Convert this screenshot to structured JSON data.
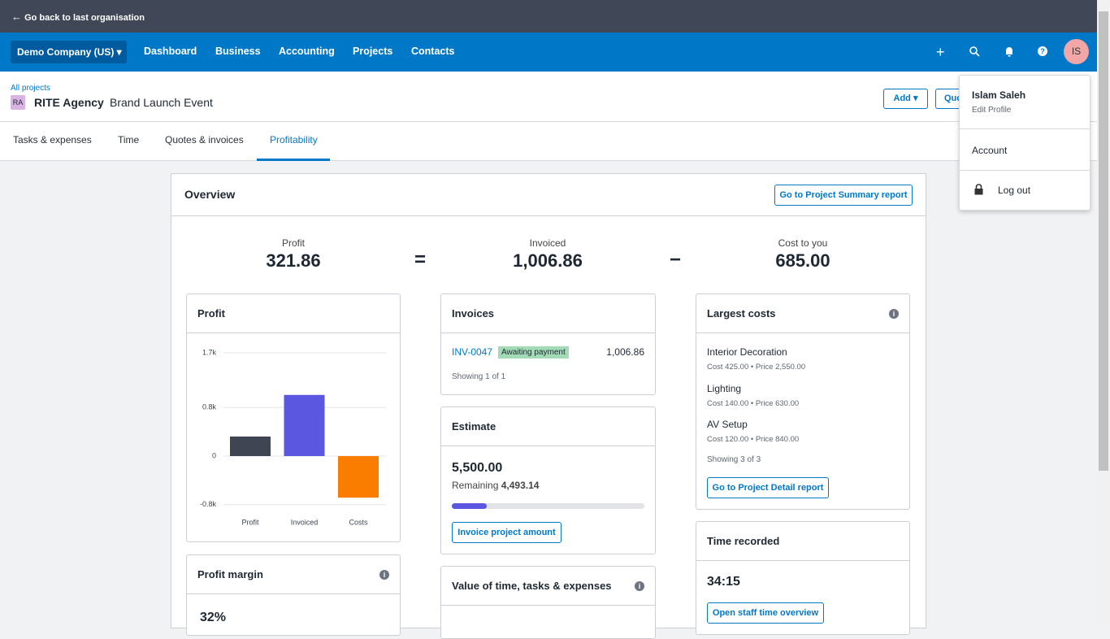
{
  "topbar": {
    "back": "Go back to last organisation"
  },
  "nav": {
    "organisation": "Demo Company (US)",
    "items": [
      "Dashboard",
      "Business",
      "Accounting",
      "Projects",
      "Contacts"
    ],
    "avatar": "IS"
  },
  "project": {
    "breadcrumb": "All projects",
    "badge": "RA",
    "client": "RITE Agency",
    "name": "Brand Launch Event",
    "buttons": [
      "Add",
      "Quo"
    ]
  },
  "tabs": {
    "items": [
      "Tasks & expenses",
      "Time",
      "Quotes & invoices",
      "Profitability"
    ],
    "active": 3
  },
  "overview": {
    "title": "Overview",
    "report_button": "Go to Project Summary report",
    "summary": [
      {
        "label": "Profit",
        "value": "321.86"
      },
      {
        "label": "Invoiced",
        "value": "1,006.86"
      },
      {
        "label": "Cost to you",
        "value": "685.00"
      }
    ],
    "operators": [
      "=",
      "−"
    ]
  },
  "profit_card": {
    "title": "Profit",
    "chart": {
      "type": "bar",
      "categories": [
        "Profit",
        "Invoiced",
        "Costs"
      ],
      "values": [
        321.86,
        1006.86,
        -685
      ],
      "colors": [
        "#3f4552",
        "#5b57e0",
        "#fa7d00"
      ],
      "ylim": [
        -850,
        1750
      ],
      "yticks": [
        {
          "value": -800,
          "label": "-0.8k"
        },
        0,
        {
          "value": 800,
          "label": "0.8k"
        },
        {
          "value": 1700,
          "label": "1.7k"
        }
      ],
      "grid": true
    }
  },
  "margin_card": {
    "title": "Profit margin",
    "value": "32%"
  },
  "invoices_card": {
    "title": "Invoices",
    "number": "INV-0047",
    "status": "Awaiting payment",
    "amount": "1,006.86",
    "footer": "Showing 1 of 1"
  },
  "estimate_card": {
    "title": "Estimate",
    "amount": "5,500.00",
    "remaining_label": "Remaining",
    "remaining": "4,493.14",
    "button": "Invoice project amount"
  },
  "value_card": {
    "title": "Value of time, tasks & expenses"
  },
  "costs_card": {
    "title": "Largest costs",
    "items": [
      {
        "name": "Interior Decoration",
        "detail": "Cost 425.00 • Price 2,550.00"
      },
      {
        "name": "Lighting",
        "detail": "Cost 140.00 • Price 630.00"
      },
      {
        "name": "AV Setup",
        "detail": "Cost 120.00 • Price 840.00"
      }
    ],
    "footer": "Showing 3 of 3",
    "button": "Go to Project Detail report"
  },
  "time_card": {
    "title": "Time recorded",
    "value": "34:15",
    "button": "Open staff time overview"
  },
  "user_menu": {
    "name": "Islam Saleh",
    "edit": "Edit Profile",
    "items": [
      "Account",
      "Log out"
    ]
  }
}
